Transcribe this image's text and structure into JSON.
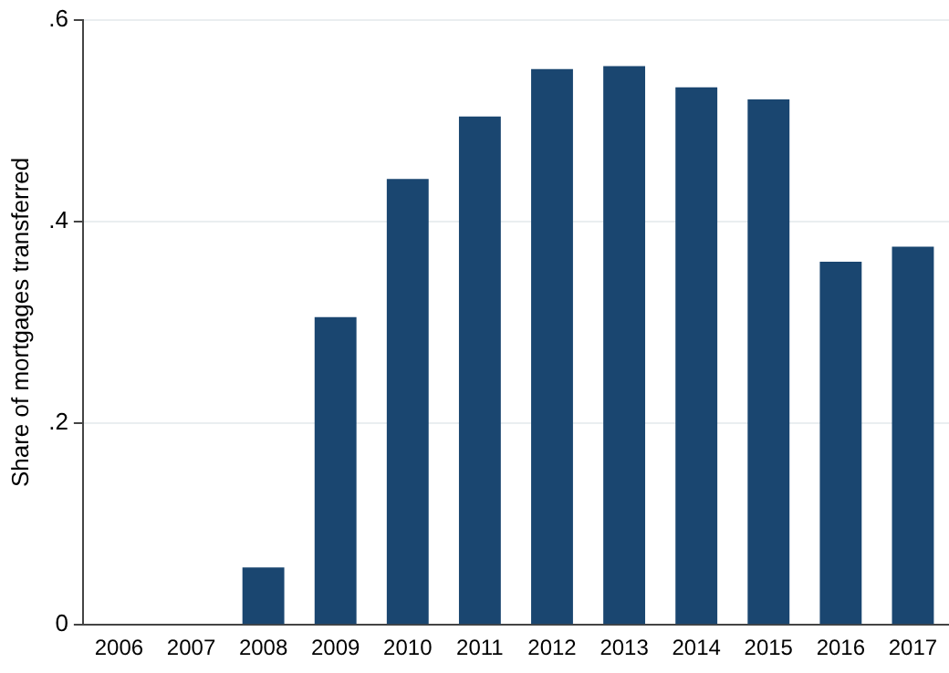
{
  "chart_data": {
    "type": "bar",
    "ylabel": "Share of mortgages transferred",
    "categories": [
      "2006",
      "2007",
      "2008",
      "2009",
      "2010",
      "2011",
      "2012",
      "2013",
      "2014",
      "2015",
      "2016",
      "2017"
    ],
    "values": [
      0,
      0,
      0.057,
      0.305,
      0.442,
      0.504,
      0.551,
      0.554,
      0.533,
      0.521,
      0.36,
      0.375
    ],
    "color": "#1a4670",
    "ylim": [
      0,
      0.6
    ],
    "yticks": [
      {
        "value": 0,
        "label": "0"
      },
      {
        "value": 0.2,
        "label": ".2"
      },
      {
        "value": 0.4,
        "label": ".4"
      },
      {
        "value": 0.6,
        "label": ".6"
      }
    ],
    "grid": "y"
  }
}
